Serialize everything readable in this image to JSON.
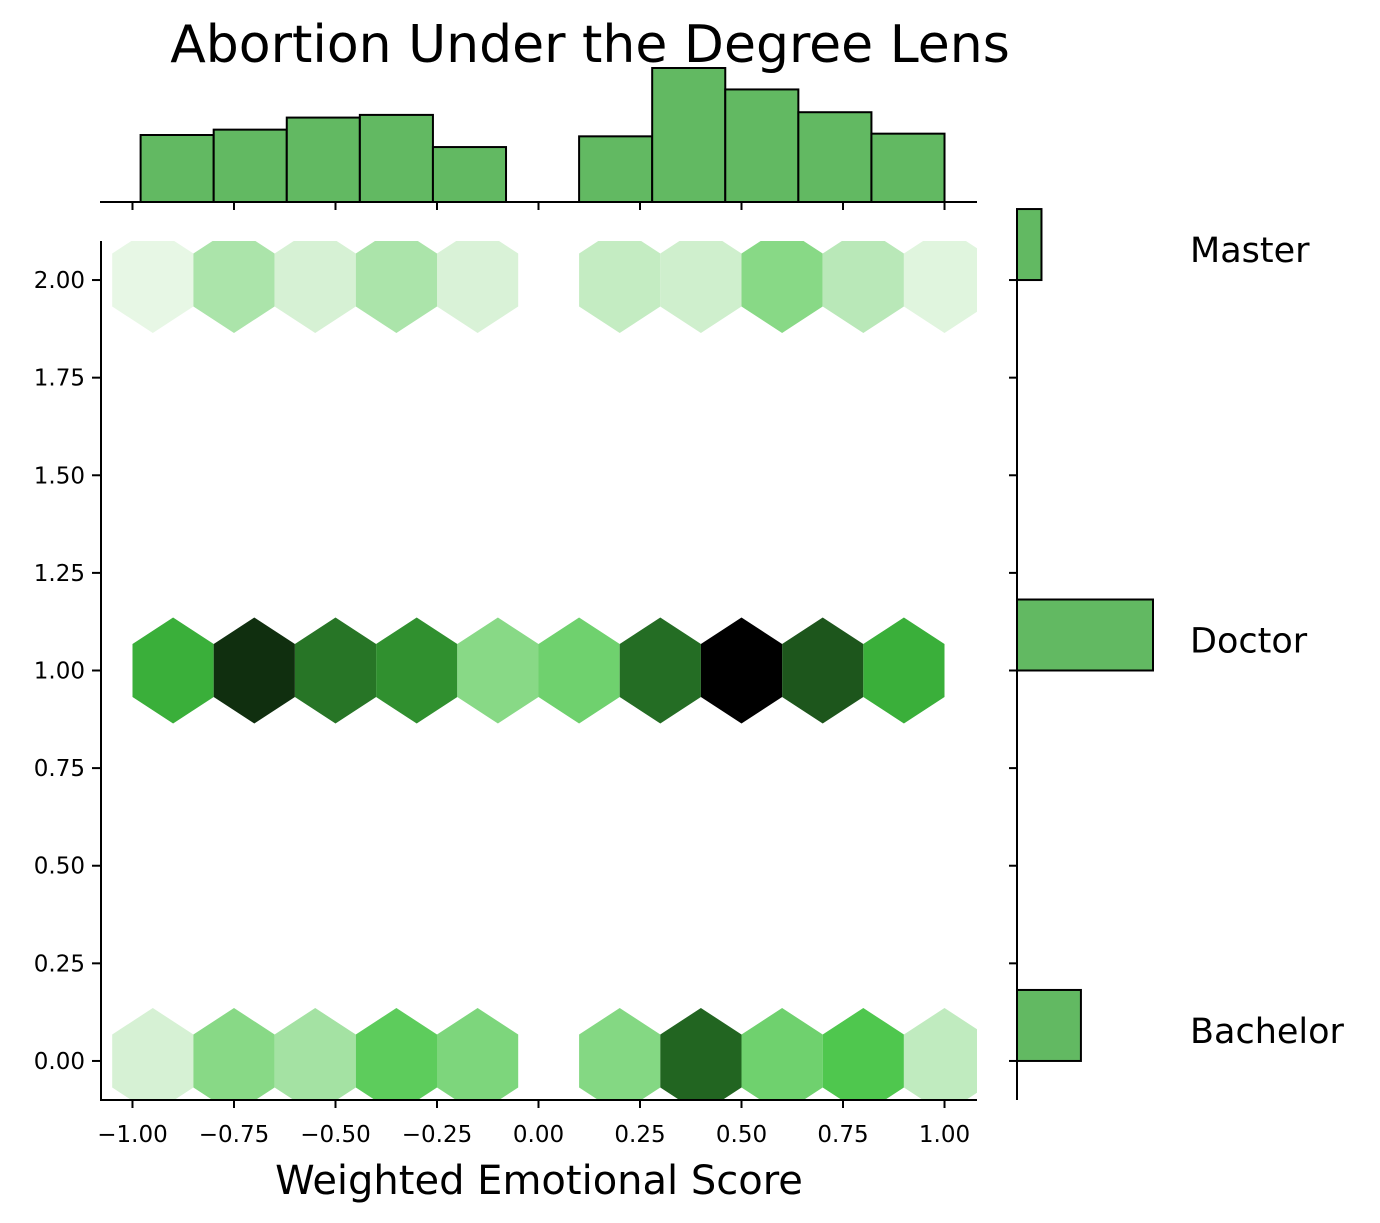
{
  "chart_data": {
    "type": "hexbin",
    "title": "Abortion Under the Degree Lens",
    "xlabel": "Weighted Emotional Score",
    "ylabel": "",
    "xlim": [
      -1.08,
      1.08
    ],
    "ylim": [
      -0.1,
      2.1
    ],
    "xticks": [
      "−1.00",
      "−0.75",
      "−0.50",
      "−0.25",
      "0.00",
      "0.25",
      "0.50",
      "0.75",
      "1.00"
    ],
    "xtick_values": [
      -1.0,
      -0.75,
      -0.5,
      -0.25,
      0.0,
      0.25,
      0.5,
      0.75,
      1.0
    ],
    "yticks": [
      "0.00",
      "0.25",
      "0.50",
      "0.75",
      "1.00",
      "1.25",
      "1.50",
      "1.75",
      "2.00"
    ],
    "ytick_values": [
      0.0,
      0.25,
      0.5,
      0.75,
      1.0,
      1.25,
      1.5,
      1.75,
      2.0
    ],
    "hex_color_light": "#f2faf0",
    "hex_color_mid": "#41c340",
    "hex_color_dark": "#000000",
    "bar_color": "#62b962",
    "hexbins": {
      "rows": [
        {
          "y": 2.0,
          "x": [
            -0.95,
            -0.75,
            -0.55,
            -0.35,
            -0.15,
            0.2,
            0.4,
            0.6,
            0.8,
            1.0
          ],
          "density": [
            0.03,
            0.2,
            0.08,
            0.2,
            0.07,
            0.13,
            0.1,
            0.3,
            0.16,
            0.05
          ]
        },
        {
          "y": 1.0,
          "x": [
            -0.9,
            -0.7,
            -0.5,
            -0.3,
            -0.1,
            0.1,
            0.3,
            0.5,
            0.7,
            0.9
          ],
          "density": [
            0.55,
            0.88,
            0.7,
            0.63,
            0.3,
            0.37,
            0.72,
            1.0,
            0.78,
            0.55
          ]
        },
        {
          "y": 0.0,
          "x": [
            -0.95,
            -0.75,
            -0.55,
            -0.35,
            -0.15,
            0.2,
            0.4,
            0.6,
            0.8,
            1.0
          ],
          "density": [
            0.08,
            0.3,
            0.22,
            0.42,
            0.33,
            0.31,
            0.74,
            0.37,
            0.46,
            0.14
          ]
        }
      ]
    },
    "x_marginal_histogram": {
      "bin_edges": [
        -0.98,
        -0.8,
        -0.62,
        -0.44,
        -0.26,
        -0.08,
        0.1,
        0.28,
        0.46,
        0.64,
        0.82,
        1.0
      ],
      "heights": [
        0.5,
        0.54,
        0.63,
        0.65,
        0.41,
        0.0,
        0.49,
        1.0,
        0.84,
        0.67,
        0.51
      ]
    },
    "y_marginal_histogram": {
      "categories": [
        "Master",
        "Doctor",
        "Bachelor"
      ],
      "y": [
        2.0,
        1.0,
        0.0
      ],
      "relative_counts": [
        0.18,
        1.0,
        0.47
      ]
    }
  }
}
